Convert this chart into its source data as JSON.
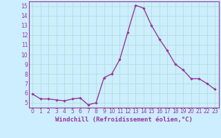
{
  "x": [
    0,
    1,
    2,
    3,
    4,
    5,
    6,
    7,
    8,
    9,
    10,
    11,
    12,
    13,
    14,
    15,
    16,
    17,
    18,
    19,
    20,
    21,
    22,
    23
  ],
  "y": [
    5.9,
    5.4,
    5.4,
    5.3,
    5.2,
    5.4,
    5.5,
    4.8,
    5.0,
    7.6,
    8.0,
    9.5,
    12.3,
    15.1,
    14.8,
    13.0,
    11.6,
    10.4,
    9.0,
    8.4,
    7.5,
    7.5,
    7.0,
    6.4
  ],
  "line_color": "#993399",
  "marker": "D",
  "marker_size": 1.8,
  "bg_color": "#cceeff",
  "grid_color": "#aaddcc",
  "tick_color": "#993399",
  "label_color": "#993399",
  "xlabel": "Windchill (Refroidissement éolien,°C)",
  "xlabel_fontsize": 6.5,
  "xlim": [
    -0.5,
    23.5
  ],
  "ylim": [
    4.5,
    15.5
  ],
  "yticks": [
    5,
    6,
    7,
    8,
    9,
    10,
    11,
    12,
    13,
    14,
    15
  ],
  "xticks": [
    0,
    1,
    2,
    3,
    4,
    5,
    6,
    7,
    8,
    9,
    10,
    11,
    12,
    13,
    14,
    15,
    16,
    17,
    18,
    19,
    20,
    21,
    22,
    23
  ],
  "tick_fontsize": 5.5,
  "line_width": 1.0
}
